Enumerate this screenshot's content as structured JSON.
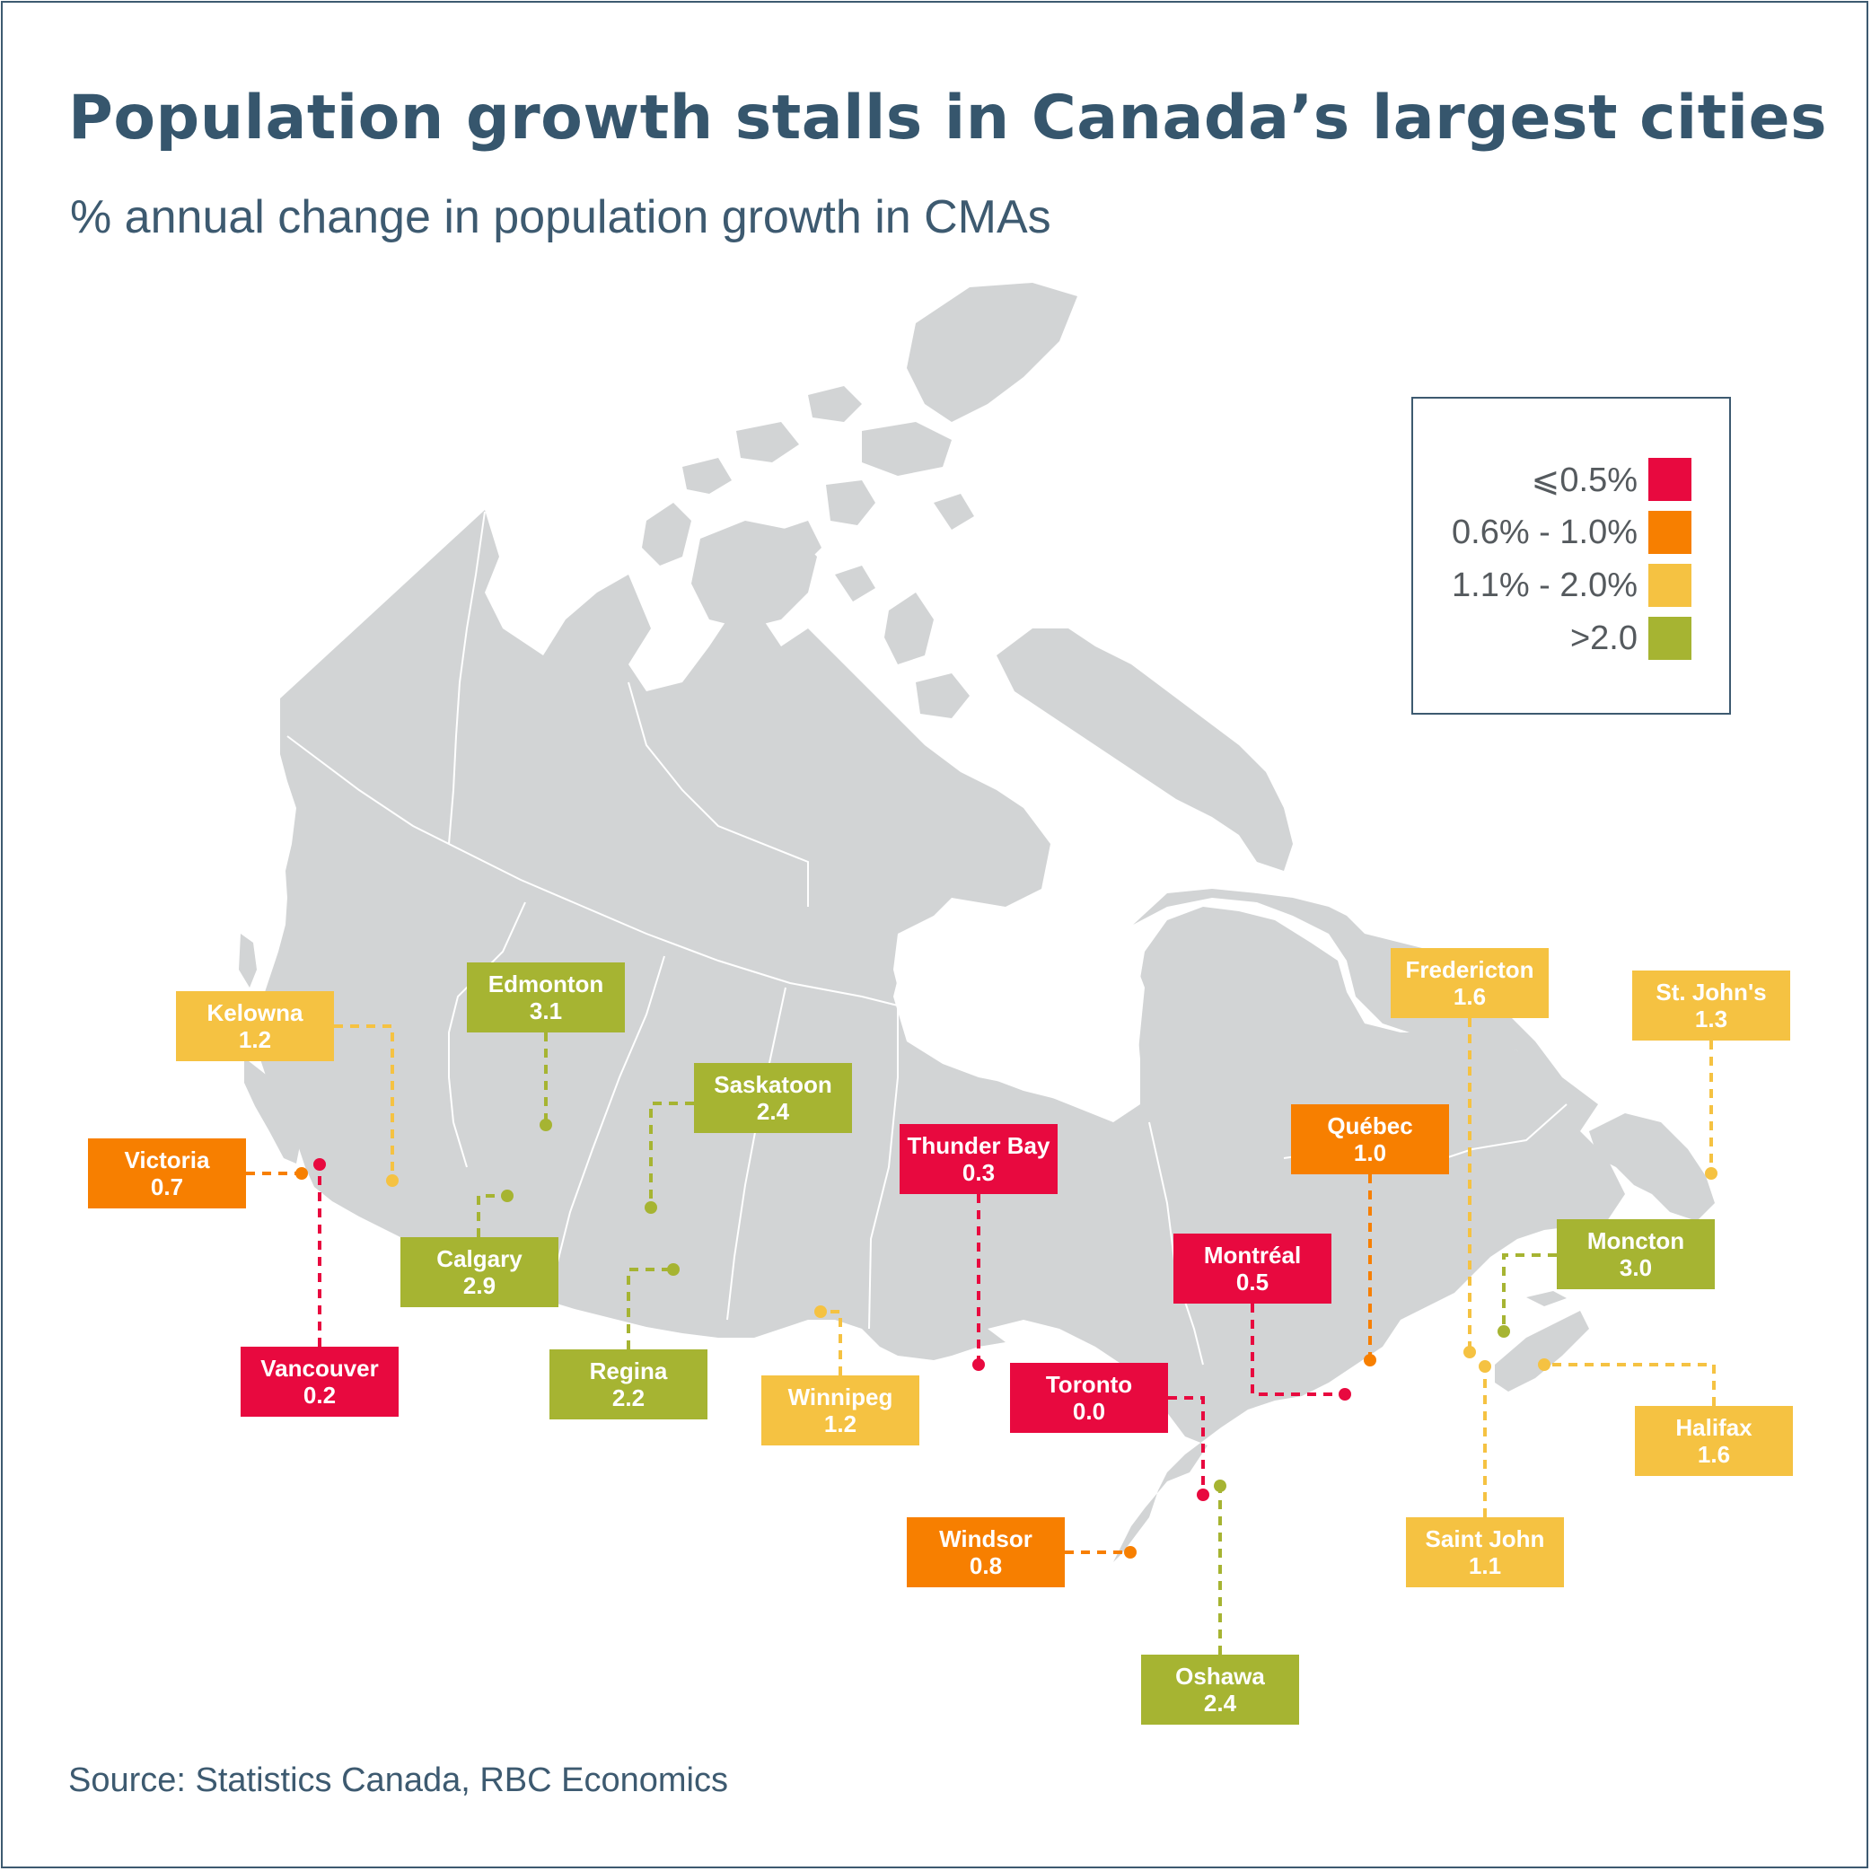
{
  "title": "Population growth stalls in Canada’s largest cities",
  "subtitle": "% annual change in population growth in CMAs",
  "source": "Source: Statistics Canada, RBC Economics",
  "colors": {
    "red": "#e8093f",
    "orange": "#f77f00",
    "yellow": "#f5c242",
    "green": "#a6b432",
    "land": "#d2d4d5",
    "title": "#36566d"
  },
  "legend": [
    {
      "label": "⩽0.5%",
      "color": "#e8093f"
    },
    {
      "label": "0.6% - 1.0%",
      "color": "#f77f00"
    },
    {
      "label": "1.1% - 2.0%",
      "color": "#f5c242"
    },
    {
      "label": ">2.0",
      "color": "#a6b432"
    }
  ],
  "cities": [
    {
      "name": "Kelowna",
      "value": "1.2",
      "color": "#f5c242"
    },
    {
      "name": "Edmonton",
      "value": "3.1",
      "color": "#a6b432"
    },
    {
      "name": "Victoria",
      "value": "0.7",
      "color": "#f77f00"
    },
    {
      "name": "Saskatoon",
      "value": "2.4",
      "color": "#a6b432"
    },
    {
      "name": "Calgary",
      "value": "2.9",
      "color": "#a6b432"
    },
    {
      "name": "Vancouver",
      "value": "0.2",
      "color": "#e8093f"
    },
    {
      "name": "Regina",
      "value": "2.2",
      "color": "#a6b432"
    },
    {
      "name": "Winnipeg",
      "value": "1.2",
      "color": "#f5c242"
    },
    {
      "name": "Thunder Bay",
      "value": "0.3",
      "color": "#e8093f"
    },
    {
      "name": "Toronto",
      "value": "0.0",
      "color": "#e8093f"
    },
    {
      "name": "Windsor",
      "value": "0.8",
      "color": "#f77f00"
    },
    {
      "name": "Oshawa",
      "value": "2.4",
      "color": "#a6b432"
    },
    {
      "name": "Montréal",
      "value": "0.5",
      "color": "#e8093f"
    },
    {
      "name": "Québec",
      "value": "1.0",
      "color": "#f77f00"
    },
    {
      "name": "Fredericton",
      "value": "1.6",
      "color": "#f5c242"
    },
    {
      "name": "St. John's",
      "value": "1.3",
      "color": "#f5c242"
    },
    {
      "name": "Moncton",
      "value": "3.0",
      "color": "#a6b432"
    },
    {
      "name": "Halifax",
      "value": "1.6",
      "color": "#f5c242"
    },
    {
      "name": "Saint John",
      "value": "1.1",
      "color": "#f5c242"
    }
  ]
}
